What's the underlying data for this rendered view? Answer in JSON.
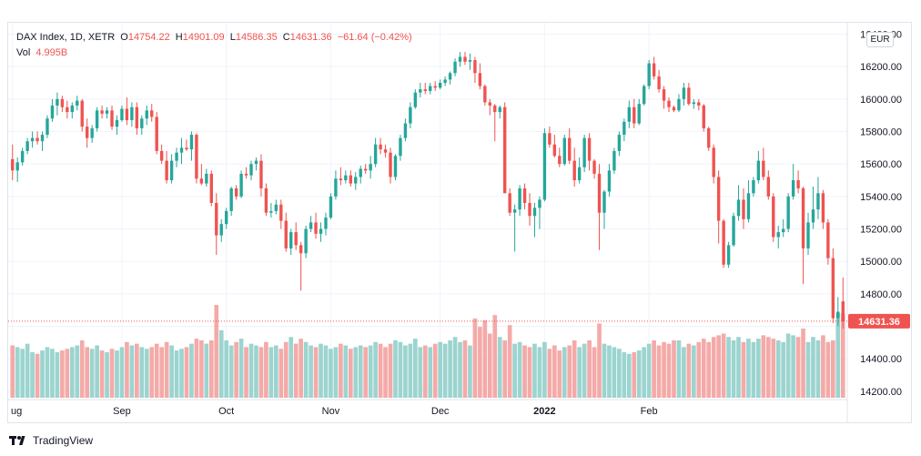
{
  "legend": {
    "symbol": "DAX Index, 1D, XETR",
    "o_label": "O",
    "o_value": "14754.22",
    "h_label": "H",
    "h_value": "14901.09",
    "l_label": "L",
    "l_value": "14586.35",
    "c_label": "C",
    "c_value": "14631.36",
    "change": "−61.64 (−0.42%)",
    "vol_label": "Vol",
    "vol_value": "4.995B"
  },
  "currency": "EUR",
  "footer": {
    "brand": "TradingView"
  },
  "colors": {
    "up": "#26a69a",
    "down": "#ef5350",
    "vol_up": "#9cd4cf",
    "vol_down": "#f4aaa8",
    "grid": "#f0f3fa",
    "price_tag": "#ef5350"
  },
  "chart_data": {
    "type": "candlestick",
    "y_axis": {
      "ticks": [
        14200,
        14400,
        14600,
        14800,
        15000,
        15200,
        15400,
        15600,
        15800,
        16000,
        16200,
        16400
      ],
      "range": [
        14160,
        16470
      ],
      "position": "right"
    },
    "x_axis": {
      "labels": [
        {
          "text": "ug",
          "index": 0
        },
        {
          "text": "Sep",
          "index": 22
        },
        {
          "text": "Oct",
          "index": 43
        },
        {
          "text": "Nov",
          "index": 64
        },
        {
          "text": "Dec",
          "index": 86
        },
        {
          "text": "2022",
          "index": 107,
          "bold": true
        },
        {
          "text": "Feb",
          "index": 128
        }
      ]
    },
    "last_price": "14631.36",
    "candles": [
      [
        15630,
        15720,
        15500,
        15560,
        3.1
      ],
      [
        15560,
        15640,
        15490,
        15610,
        3.0
      ],
      [
        15610,
        15700,
        15590,
        15680,
        2.9
      ],
      [
        15680,
        15760,
        15660,
        15740,
        3.2
      ],
      [
        15740,
        15800,
        15700,
        15760,
        2.7
      ],
      [
        15760,
        15800,
        15720,
        15740,
        2.6
      ],
      [
        15740,
        15800,
        15680,
        15780,
        2.8
      ],
      [
        15780,
        15900,
        15760,
        15880,
        3.0
      ],
      [
        15880,
        16000,
        15860,
        15960,
        2.9
      ],
      [
        15960,
        16040,
        15900,
        16000,
        2.7
      ],
      [
        16000,
        16020,
        15920,
        15950,
        2.8
      ],
      [
        15950,
        15990,
        15880,
        15920,
        2.9
      ],
      [
        15920,
        15980,
        15880,
        15960,
        3.0
      ],
      [
        15960,
        16020,
        15930,
        15990,
        3.1
      ],
      [
        15990,
        16000,
        15800,
        15830,
        3.4
      ],
      [
        15830,
        15880,
        15700,
        15760,
        3.0
      ],
      [
        15760,
        15840,
        15730,
        15820,
        2.9
      ],
      [
        15820,
        15950,
        15800,
        15930,
        3.1
      ],
      [
        15930,
        15960,
        15880,
        15910,
        2.8
      ],
      [
        15910,
        15950,
        15880,
        15930,
        2.7
      ],
      [
        15930,
        15960,
        15810,
        15830,
        2.9
      ],
      [
        15830,
        15900,
        15780,
        15870,
        2.8
      ],
      [
        15870,
        15960,
        15860,
        15940,
        3.0
      ],
      [
        15940,
        16010,
        15840,
        15870,
        3.3
      ],
      [
        15870,
        15980,
        15830,
        15950,
        3.1
      ],
      [
        15950,
        15980,
        15780,
        15820,
        3.2
      ],
      [
        15820,
        15900,
        15780,
        15880,
        3.0
      ],
      [
        15880,
        15960,
        15840,
        15930,
        2.9
      ],
      [
        15930,
        15970,
        15860,
        15890,
        3.0
      ],
      [
        15890,
        15920,
        15660,
        15680,
        3.2
      ],
      [
        15680,
        15720,
        15600,
        15620,
        3.0
      ],
      [
        15620,
        15680,
        15480,
        15500,
        3.3
      ],
      [
        15500,
        15660,
        15480,
        15620,
        3.1
      ],
      [
        15620,
        15700,
        15580,
        15670,
        2.8
      ],
      [
        15670,
        15760,
        15600,
        15700,
        2.9
      ],
      [
        15700,
        15750,
        15680,
        15690,
        3.0
      ],
      [
        15690,
        15800,
        15620,
        15780,
        3.2
      ],
      [
        15780,
        15790,
        15480,
        15510,
        3.5
      ],
      [
        15510,
        15600,
        15470,
        15480,
        3.4
      ],
      [
        15480,
        15570,
        15460,
        15540,
        3.2
      ],
      [
        15540,
        15560,
        15340,
        15360,
        3.4
      ],
      [
        15360,
        15420,
        15040,
        15160,
        5.5
      ],
      [
        15160,
        15260,
        15120,
        15230,
        4.0
      ],
      [
        15230,
        15330,
        15200,
        15310,
        3.4
      ],
      [
        15310,
        15460,
        15280,
        15450,
        3.1
      ],
      [
        15450,
        15470,
        15380,
        15400,
        3.3
      ],
      [
        15400,
        15560,
        15390,
        15540,
        3.5
      ],
      [
        15540,
        15580,
        15510,
        15530,
        3.0
      ],
      [
        15530,
        15620,
        15500,
        15600,
        3.2
      ],
      [
        15600,
        15640,
        15560,
        15620,
        3.1
      ],
      [
        15620,
        15660,
        15400,
        15450,
        3.0
      ],
      [
        15450,
        15480,
        15280,
        15300,
        3.3
      ],
      [
        15300,
        15360,
        15270,
        15310,
        3.0
      ],
      [
        15310,
        15380,
        15290,
        15350,
        3.1
      ],
      [
        15350,
        15380,
        15200,
        15250,
        2.9
      ],
      [
        15250,
        15300,
        15060,
        15080,
        3.3
      ],
      [
        15080,
        15200,
        15040,
        15180,
        3.6
      ],
      [
        15180,
        15240,
        15070,
        15100,
        3.2
      ],
      [
        15100,
        15120,
        14820,
        15050,
        3.5
      ],
      [
        15050,
        15220,
        15020,
        15200,
        3.3
      ],
      [
        15200,
        15280,
        15180,
        15240,
        3.1
      ],
      [
        15240,
        15300,
        15140,
        15170,
        3.0
      ],
      [
        15170,
        15240,
        15120,
        15200,
        3.2
      ],
      [
        15200,
        15300,
        15160,
        15270,
        3.1
      ],
      [
        15270,
        15420,
        15260,
        15400,
        2.9
      ],
      [
        15400,
        15560,
        15380,
        15510,
        3.0
      ],
      [
        15510,
        15580,
        15470,
        15500,
        3.2
      ],
      [
        15500,
        15560,
        15480,
        15530,
        3.1
      ],
      [
        15530,
        15560,
        15460,
        15480,
        2.9
      ],
      [
        15480,
        15550,
        15440,
        15520,
        3.0
      ],
      [
        15520,
        15590,
        15480,
        15570,
        3.1
      ],
      [
        15570,
        15600,
        15540,
        15560,
        3.0
      ],
      [
        15560,
        15650,
        15510,
        15600,
        3.1
      ],
      [
        15600,
        15760,
        15580,
        15720,
        3.3
      ],
      [
        15720,
        15760,
        15660,
        15690,
        3.2
      ],
      [
        15690,
        15720,
        15640,
        15670,
        3.0
      ],
      [
        15670,
        15700,
        15480,
        15520,
        3.2
      ],
      [
        15520,
        15660,
        15500,
        15650,
        3.4
      ],
      [
        15650,
        15780,
        15620,
        15760,
        3.3
      ],
      [
        15760,
        15880,
        15740,
        15850,
        3.1
      ],
      [
        15850,
        15980,
        15820,
        15950,
        3.2
      ],
      [
        15950,
        16060,
        15940,
        16040,
        3.5
      ],
      [
        16040,
        16100,
        16010,
        16060,
        3.0
      ],
      [
        16060,
        16100,
        16030,
        16050,
        3.1
      ],
      [
        16050,
        16100,
        16030,
        16080,
        3.0
      ],
      [
        16080,
        16110,
        16050,
        16070,
        3.2
      ],
      [
        16070,
        16120,
        16060,
        16100,
        3.3
      ],
      [
        16100,
        16140,
        16080,
        16120,
        3.2
      ],
      [
        16120,
        16170,
        16090,
        16160,
        3.4
      ],
      [
        16160,
        16250,
        16140,
        16230,
        3.6
      ],
      [
        16230,
        16290,
        16200,
        16260,
        3.3
      ],
      [
        16260,
        16290,
        16210,
        16230,
        3.4
      ],
      [
        16230,
        16280,
        16180,
        16240,
        3.1
      ],
      [
        16240,
        16260,
        16100,
        16160,
        4.7
      ],
      [
        16160,
        16220,
        16060,
        16080,
        4.2
      ],
      [
        16080,
        16090,
        15960,
        15980,
        4.6
      ],
      [
        15980,
        16000,
        15900,
        15960,
        3.8
      ],
      [
        15960,
        15970,
        15740,
        15920,
        4.9
      ],
      [
        15920,
        15960,
        15880,
        15950,
        3.6
      ],
      [
        15950,
        15980,
        15420,
        15420,
        3.4
      ],
      [
        15420,
        15450,
        15280,
        15300,
        4.3
      ],
      [
        15300,
        15350,
        15060,
        15320,
        3.2
      ],
      [
        15320,
        15470,
        15280,
        15450,
        3.3
      ],
      [
        15450,
        15480,
        15320,
        15360,
        3.1
      ],
      [
        15360,
        15420,
        15220,
        15280,
        3.0
      ],
      [
        15280,
        15360,
        15150,
        15330,
        3.2
      ],
      [
        15330,
        15400,
        15200,
        15380,
        3.0
      ],
      [
        15380,
        15820,
        15370,
        15790,
        3.3
      ],
      [
        15790,
        15830,
        15700,
        15720,
        2.9
      ],
      [
        15720,
        15780,
        15640,
        15650,
        3.1
      ],
      [
        15650,
        15700,
        15580,
        15600,
        2.8
      ],
      [
        15600,
        15780,
        15590,
        15760,
        3.0
      ],
      [
        15760,
        15820,
        15600,
        15620,
        3.1
      ],
      [
        15620,
        15700,
        15460,
        15500,
        3.4
      ],
      [
        15500,
        15640,
        15480,
        15580,
        3.0
      ],
      [
        15580,
        15780,
        15550,
        15760,
        3.2
      ],
      [
        15760,
        15790,
        15560,
        15620,
        3.4
      ],
      [
        15620,
        15630,
        15510,
        15540,
        3.0
      ],
      [
        15540,
        15600,
        15070,
        15300,
        4.4
      ],
      [
        15300,
        15440,
        15200,
        15430,
        3.2
      ],
      [
        15430,
        15600,
        15400,
        15560,
        3.1
      ],
      [
        15560,
        15700,
        15540,
        15680,
        3.0
      ],
      [
        15680,
        15800,
        15650,
        15780,
        2.9
      ],
      [
        15780,
        15880,
        15740,
        15860,
        2.7
      ],
      [
        15860,
        15990,
        15820,
        15950,
        2.6
      ],
      [
        15950,
        16000,
        15820,
        15850,
        2.7
      ],
      [
        15850,
        16000,
        15840,
        15970,
        2.8
      ],
      [
        15970,
        16090,
        15960,
        16080,
        3.0
      ],
      [
        16080,
        16240,
        16060,
        16220,
        3.2
      ],
      [
        16220,
        16260,
        16120,
        16140,
        3.4
      ],
      [
        16140,
        16180,
        16040,
        16060,
        3.1
      ],
      [
        16060,
        16080,
        15940,
        15990,
        3.3
      ],
      [
        15990,
        16010,
        15920,
        15950,
        3.2
      ],
      [
        15950,
        15960,
        15920,
        15930,
        3.4
      ],
      [
        15930,
        16030,
        15920,
        16000,
        3.4
      ],
      [
        16000,
        16100,
        15960,
        16070,
        3.0
      ],
      [
        16070,
        16100,
        15960,
        15970,
        3.2
      ],
      [
        15970,
        16000,
        15940,
        15980,
        3.1
      ],
      [
        15980,
        16000,
        15930,
        15960,
        3.3
      ],
      [
        15960,
        15970,
        15800,
        15820,
        3.5
      ],
      [
        15820,
        15830,
        15680,
        15700,
        3.3
      ],
      [
        15700,
        15720,
        15480,
        15520,
        3.6
      ],
      [
        15520,
        15560,
        15110,
        15250,
        3.7
      ],
      [
        15250,
        15260,
        14960,
        14980,
        3.8
      ],
      [
        14980,
        15120,
        14960,
        15100,
        3.6
      ],
      [
        15100,
        15300,
        15090,
        15280,
        3.4
      ],
      [
        15280,
        15470,
        15250,
        15380,
        3.6
      ],
      [
        15380,
        15450,
        15200,
        15260,
        3.3
      ],
      [
        15260,
        15500,
        15240,
        15420,
        3.5
      ],
      [
        15420,
        15520,
        15400,
        15500,
        3.3
      ],
      [
        15500,
        15680,
        15480,
        15620,
        3.5
      ],
      [
        15620,
        15700,
        15500,
        15520,
        3.7
      ],
      [
        15520,
        15560,
        15380,
        15400,
        3.6
      ],
      [
        15400,
        15420,
        15120,
        15150,
        3.5
      ],
      [
        15150,
        15220,
        15080,
        15180,
        3.4
      ],
      [
        15180,
        15260,
        15150,
        15200,
        3.3
      ],
      [
        15200,
        15420,
        15180,
        15400,
        3.8
      ],
      [
        15400,
        15600,
        15380,
        15500,
        3.7
      ],
      [
        15500,
        15560,
        15420,
        15450,
        3.6
      ],
      [
        15450,
        15460,
        14860,
        15080,
        4.1
      ],
      [
        15080,
        15300,
        15040,
        15240,
        3.3
      ],
      [
        15240,
        15460,
        15200,
        15320,
        3.6
      ],
      [
        15320,
        15520,
        15260,
        15420,
        3.4
      ],
      [
        15420,
        15440,
        15200,
        15240,
        3.7
      ],
      [
        15240,
        15260,
        14980,
        15020,
        3.3
      ],
      [
        15020,
        15080,
        14620,
        14650,
        3.4
      ],
      [
        14650,
        14780,
        14600,
        14690,
        5.0
      ],
      [
        14754,
        14901,
        14586,
        14631,
        4.995
      ]
    ]
  }
}
